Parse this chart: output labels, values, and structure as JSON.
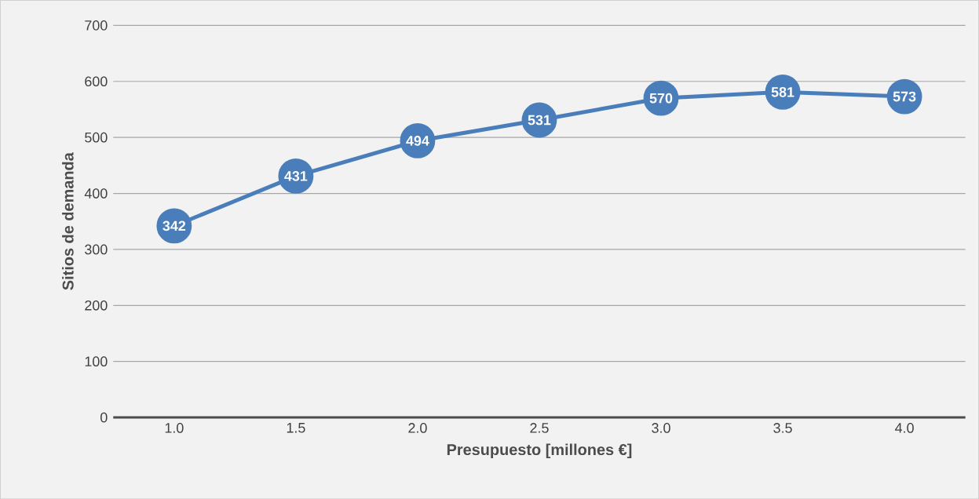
{
  "chart_data": {
    "type": "line",
    "xlabel": "Presupuesto [millones €]",
    "ylabel": "Sitios de demanda",
    "categories": [
      "1.0",
      "1.5",
      "2.0",
      "2.5",
      "3.0",
      "3.5",
      "4.0"
    ],
    "series": [
      {
        "color": "#4a7ebb",
        "values": [
          342,
          431,
          494,
          531,
          570,
          581,
          573
        ]
      }
    ],
    "ylim": [
      0,
      700
    ],
    "yticks": [
      0,
      100,
      200,
      300,
      400,
      500,
      600,
      700
    ],
    "grid": "y",
    "marker": "circle",
    "line_style": "solid",
    "data_labels": true
  }
}
